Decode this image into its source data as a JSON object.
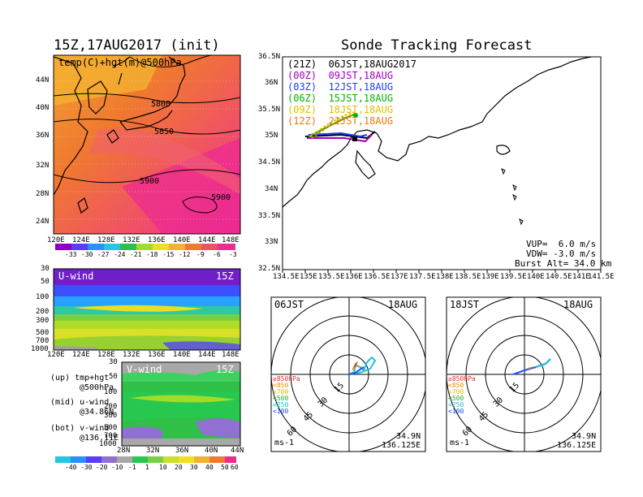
{
  "left": {
    "title": "15Z,17AUG2017 (init)",
    "top_panel": {
      "label": "temp(C)+hgt(m)@500hPa",
      "lat_ticks": [
        "44N",
        "40N",
        "36N",
        "32N",
        "28N",
        "24N"
      ],
      "lon_ticks": [
        "120E",
        "124E",
        "128E",
        "132E",
        "136E",
        "140E",
        "144E",
        "148E"
      ],
      "contours": [
        "5800",
        "5850",
        "5900",
        "5900"
      ],
      "colorbar": [
        "-33",
        "-30",
        "-27",
        "-24",
        "-21",
        "-18",
        "-15",
        "-12",
        "-9",
        "-6",
        "-3"
      ]
    },
    "mid_panel": {
      "label": "U-wind",
      "time": "15Z",
      "p_ticks": [
        "30",
        "50",
        "100",
        "200",
        "300",
        "500",
        "700",
        "1000"
      ],
      "lon_ticks": [
        "120E",
        "124E",
        "128E",
        "132E",
        "136E",
        "140E",
        "144E",
        "148E"
      ]
    },
    "bot_panel": {
      "label": "V-wind",
      "time": "15Z",
      "p_ticks": [
        "30",
        "50",
        "100",
        "200",
        "300",
        "500",
        "700",
        "1000"
      ],
      "lat_ticks": [
        "28N",
        "32N",
        "36N",
        "40N",
        "44N"
      ],
      "colorbar": [
        "-40",
        "-30",
        "-20",
        "-10",
        "-1",
        "1",
        "10",
        "20",
        "30",
        "40",
        "50",
        "60"
      ]
    },
    "legend": [
      [
        "(up) tmp+hgt",
        "@500hPa"
      ],
      [
        "(mid) u-wind",
        "@34.86N"
      ],
      [
        "(bot) v-wind",
        "@136.11E"
      ]
    ]
  },
  "right": {
    "title": "Sonde Tracking Forecast",
    "lat_ticks": [
      "36.5N",
      "36N",
      "35.5N",
      "35N",
      "34.5N",
      "34N",
      "33.5N",
      "33N",
      "32.5N"
    ],
    "lon_ticks": [
      "134.5E",
      "135E",
      "135.5E",
      "136E",
      "136.5E",
      "137E",
      "137.5E",
      "138E",
      "138.5E",
      "139E",
      "139.5E",
      "140E",
      "140.5E",
      "141E",
      "141.5E"
    ],
    "launches": [
      {
        "label": "(21Z)  06JST,18AUG2017",
        "color": "#000000"
      },
      {
        "label": "(00Z)  09JST,18AUG",
        "color": "#a000c0"
      },
      {
        "label": "(03Z)  12JST,18AUG",
        "color": "#1e3cff"
      },
      {
        "label": "(06Z)  15JST,18AUG",
        "color": "#00b400"
      },
      {
        "label": "(09Z)  18JST,18AUG",
        "color": "#e0c000"
      },
      {
        "label": "(12Z)  21JST,18AUG",
        "color": "#f07800"
      }
    ],
    "params": [
      "VUP=  6.0 m/s",
      "VDW= -3.0 m/s",
      "Burst Alt= 34.0 km"
    ],
    "hodographs": [
      {
        "time": "06JST",
        "date": "18AUG",
        "rings": [
          "15",
          "30",
          "45",
          "60"
        ],
        "unit": "ms-1",
        "lat": "34.9N",
        "lon": "136.125E"
      },
      {
        "time": "18JST",
        "date": "18AUG",
        "rings": [
          "15",
          "30",
          "45",
          "60"
        ],
        "unit": "ms-1",
        "lat": "34.9N",
        "lon": "136.125E"
      }
    ],
    "hodo_legend": [
      {
        "label": "≥850hPa",
        "color": "#e03030"
      },
      {
        "label": "<850",
        "color": "#f09000"
      },
      {
        "label": "<700",
        "color": "#d8c000"
      },
      {
        "label": "<500",
        "color": "#30b030"
      },
      {
        "label": "<250",
        "color": "#20c0d0"
      },
      {
        "label": "<100",
        "color": "#2050ff"
      }
    ]
  }
}
